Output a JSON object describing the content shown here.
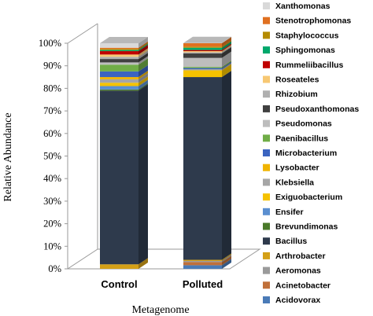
{
  "chart_data": {
    "type": "bar",
    "stacked": true,
    "percent": true,
    "title": "",
    "xlabel": "Metagenome",
    "ylabel": "Relative Abundance",
    "ylim": [
      0,
      100
    ],
    "yticks": [
      "0%",
      "10%",
      "20%",
      "30%",
      "40%",
      "50%",
      "60%",
      "70%",
      "80%",
      "90%",
      "100%"
    ],
    "grid": false,
    "legend_position": "right",
    "categories": [
      "Control",
      "Polluted"
    ],
    "series": [
      {
        "name": "Acidovorax",
        "color": "#4a7bb7",
        "values": [
          0.0,
          1.6
        ]
      },
      {
        "name": "Acinetobacter",
        "color": "#c0703a",
        "values": [
          0.0,
          1.4
        ]
      },
      {
        "name": "Aeromonas",
        "color": "#9a9a9a",
        "values": [
          0.0,
          0.5
        ]
      },
      {
        "name": "Arthrobacter",
        "color": "#d4a017",
        "values": [
          2.0,
          0.5
        ]
      },
      {
        "name": "Bacillus",
        "color": "#2e3a4c",
        "values": [
          77.0,
          81.0
        ]
      },
      {
        "name": "Brevundimonas",
        "color": "#4a7a2a",
        "values": [
          0.5,
          0.0
        ]
      },
      {
        "name": "Ensifer",
        "color": "#5b8fd0",
        "values": [
          1.5,
          0.0
        ]
      },
      {
        "name": "Exiguobacterium",
        "color": "#f5c200",
        "values": [
          1.5,
          3.0
        ]
      },
      {
        "name": "Klebsiella",
        "color": "#a6a6a6",
        "values": [
          1.5,
          0.5
        ]
      },
      {
        "name": "Lysobacter",
        "color": "#f0b400",
        "values": [
          1.0,
          0.0
        ]
      },
      {
        "name": "Microbacterium",
        "color": "#3b64c0",
        "values": [
          2.5,
          0.5
        ]
      },
      {
        "name": "Paenibacillus",
        "color": "#70ad47",
        "values": [
          3.0,
          0.5
        ]
      },
      {
        "name": "Pseudomonas",
        "color": "#bdbdbd",
        "values": [
          1.0,
          4.0
        ]
      },
      {
        "name": "Pseudoxanthomonas",
        "color": "#404040",
        "values": [
          1.5,
          2.0
        ]
      },
      {
        "name": "Rhizobium",
        "color": "#b0b0b0",
        "values": [
          1.0,
          0.5
        ]
      },
      {
        "name": "Roseateles",
        "color": "#f7c873",
        "values": [
          1.0,
          0.5
        ]
      },
      {
        "name": "Rummeliibacillus",
        "color": "#c00000",
        "values": [
          1.5,
          0.5
        ]
      },
      {
        "name": "Sphingomonas",
        "color": "#00a86b",
        "values": [
          0.5,
          1.0
        ]
      },
      {
        "name": "Staphylococcus",
        "color": "#b58b00",
        "values": [
          0.5,
          0.5
        ]
      },
      {
        "name": "Stenotrophomonas",
        "color": "#e07020",
        "values": [
          0.5,
          1.5
        ]
      },
      {
        "name": "Xanthomonas",
        "color": "#d9d9d9",
        "values": [
          2.0,
          0.1
        ]
      }
    ]
  }
}
